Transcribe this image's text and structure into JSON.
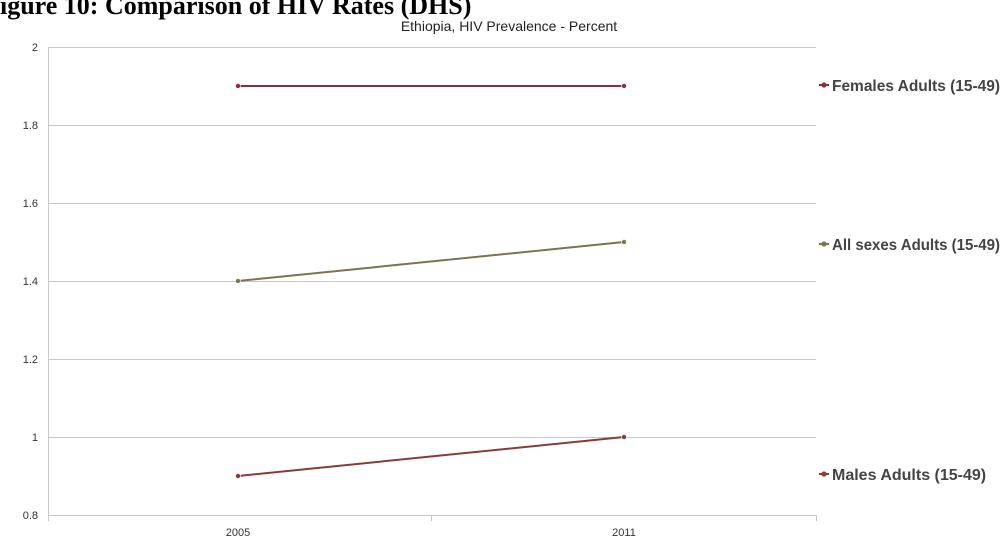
{
  "page": {
    "heading": "igure 10: Comparison of HIV Rates (DHS)"
  },
  "chart_data": {
    "type": "line",
    "title": "Ethiopia, HIV Prevalence - Percent",
    "xlabel": "",
    "ylabel": "",
    "categories": [
      "2005",
      "2011"
    ],
    "ylim": [
      0.8,
      2
    ],
    "yticks": [
      "2",
      "1.8",
      "1.6",
      "1.4",
      "1.2",
      "1",
      "0.8"
    ],
    "ytick_values": [
      2,
      1.8,
      1.6,
      1.4,
      1.2,
      1,
      0.8
    ],
    "grid": true,
    "legend_position": "right",
    "series": [
      {
        "name": "Females Adults (15-49)",
        "values": [
          1.9,
          1.9
        ],
        "color": "#8b2e3c"
      },
      {
        "name": "All sexes Adults (15-49)",
        "values": [
          1.4,
          1.5
        ],
        "color": "#7a7550"
      },
      {
        "name": "Males Adults (15-49)",
        "values": [
          0.9,
          1.0
        ],
        "color": "#8b3a3a"
      }
    ]
  }
}
